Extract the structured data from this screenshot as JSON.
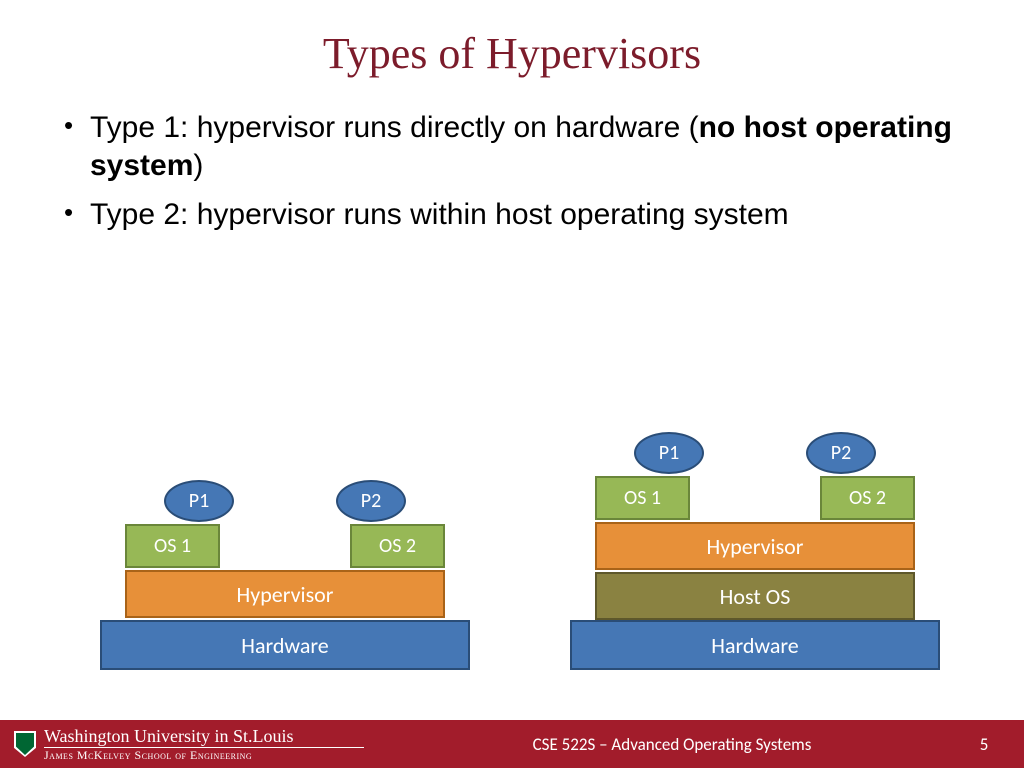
{
  "title": "Types of Hypervisors",
  "bullets": {
    "b1_pre": "Type 1: hypervisor runs directly on hardware (",
    "b1_bold": "no host operating system",
    "b1_post": ")",
    "b2": "Type 2: hypervisor runs within host operating system"
  },
  "diagram": {
    "type": "stacked-block-diagram",
    "colors": {
      "hardware_fill": "#4577b5",
      "hardware_border": "#2a4d77",
      "hypervisor_fill": "#e79039",
      "hypervisor_border": "#a96318",
      "hostos_fill": "#8a8241",
      "hostos_border": "#5e582b",
      "os_fill": "#97b856",
      "os_border": "#6a863a",
      "process_fill": "#4577b5",
      "process_border": "#2a4d77",
      "text": "#ffffff"
    },
    "left_stack": {
      "p1": "P1",
      "p2": "P2",
      "os1": "OS 1",
      "os2": "OS 2",
      "hypervisor": "Hypervisor",
      "hardware": "Hardware"
    },
    "right_stack": {
      "p1": "P1",
      "p2": "P2",
      "os1": "OS 1",
      "os2": "OS 2",
      "hypervisor": "Hypervisor",
      "hostos": "Host OS",
      "hardware": "Hardware"
    }
  },
  "footer": {
    "university": "Washington University in St.Louis",
    "school": "James McKelvey School of Engineering",
    "course": "CSE 522S – Advanced Operating Systems",
    "page": "5",
    "bg_color": "#a21c2b"
  }
}
